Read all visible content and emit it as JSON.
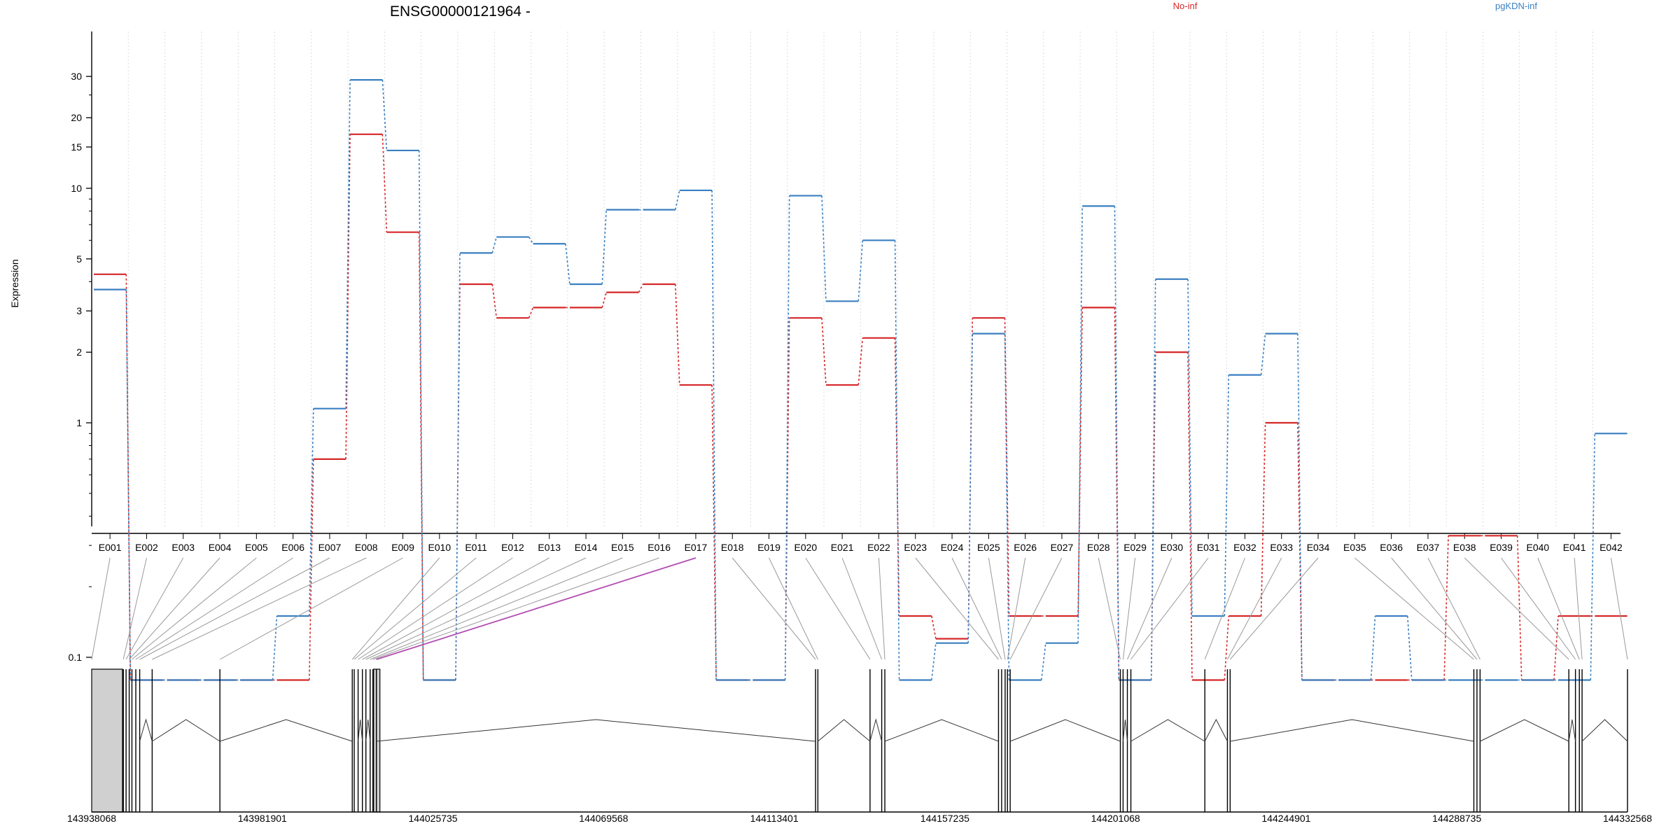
{
  "chart_data": {
    "type": "line",
    "title": "ENSG00000121964 -",
    "ylabel": "Expression",
    "xlabel": "",
    "yscale": "log",
    "yticks": [
      0.1,
      1,
      2,
      3,
      5,
      10,
      15,
      20,
      30
    ],
    "ytick_labels": [
      "0.1",
      "1",
      "2",
      "3",
      "5",
      "10",
      "15",
      "20",
      "30"
    ],
    "grid": "vertical dotted",
    "legend_placement": "top",
    "categories": [
      "E001",
      "E002",
      "E003",
      "E004",
      "E005",
      "E006",
      "E007",
      "E008",
      "E009",
      "E010",
      "E011",
      "E012",
      "E013",
      "E014",
      "E015",
      "E016",
      "E017",
      "E018",
      "E019",
      "E020",
      "E021",
      "E022",
      "E023",
      "E024",
      "E025",
      "E026",
      "E027",
      "E028",
      "E029",
      "E030",
      "E031",
      "E032",
      "E033",
      "E034",
      "E035",
      "E036",
      "E037",
      "E038",
      "E039",
      "E040",
      "E041",
      "E042"
    ],
    "series": [
      {
        "name": "No-inf",
        "color": "#d62728",
        "values": [
          4.3,
          0.08,
          0.08,
          0.08,
          0.08,
          0.08,
          0.7,
          17,
          6.5,
          0.08,
          3.9,
          2.8,
          3.1,
          3.1,
          3.6,
          3.9,
          1.45,
          0.08,
          0.08,
          2.8,
          1.45,
          2.3,
          0.15,
          0.12,
          2.8,
          0.15,
          0.15,
          3.1,
          0.08,
          2.0,
          0.08,
          0.15,
          1.0,
          0.08,
          0.08,
          0.08,
          0.08,
          0.33,
          0.33,
          0.08,
          0.15,
          0.15
        ]
      },
      {
        "name": "pgKDN-inf",
        "color": "#3a7fc1",
        "values": [
          3.7,
          0.08,
          0.08,
          0.08,
          0.08,
          0.15,
          1.15,
          29,
          14.5,
          0.08,
          5.3,
          6.2,
          5.8,
          3.9,
          8.1,
          8.1,
          9.8,
          0.08,
          0.08,
          9.3,
          3.3,
          6.0,
          0.08,
          0.115,
          2.4,
          0.08,
          0.115,
          8.4,
          0.08,
          4.1,
          0.15,
          1.6,
          2.4,
          0.08,
          0.08,
          0.15,
          0.08,
          0.08,
          0.08,
          0.08,
          0.08,
          0.9
        ]
      }
    ],
    "genomic_axis": {
      "tick_labels": [
        "143938068",
        "143981901",
        "144025735",
        "144069568",
        "144113401",
        "144157235",
        "144201068",
        "144244901",
        "144288735",
        "144332568"
      ],
      "range": [
        143938068,
        144332568
      ]
    },
    "exon_positions": [
      143938068,
      143946200,
      143946900,
      143947700,
      143948400,
      143949400,
      143950400,
      143953600,
      143971000,
      144005000,
      144005500,
      144006500,
      144007600,
      144008500,
      144009600,
      144010300,
      144011200,
      144124000,
      144124600,
      144138000,
      144141000,
      144141800,
      144171000,
      144171800,
      144172700,
      144173300,
      144174000,
      144202300,
      144203000,
      144204100,
      144205000,
      144224000,
      144229800,
      144230500,
      144293100,
      144293900,
      144294700,
      144317500,
      144319200,
      144320200,
      144320900,
      144332568
    ],
    "highlighted_exon": "E017",
    "highlight_color": "#b24cb2"
  }
}
